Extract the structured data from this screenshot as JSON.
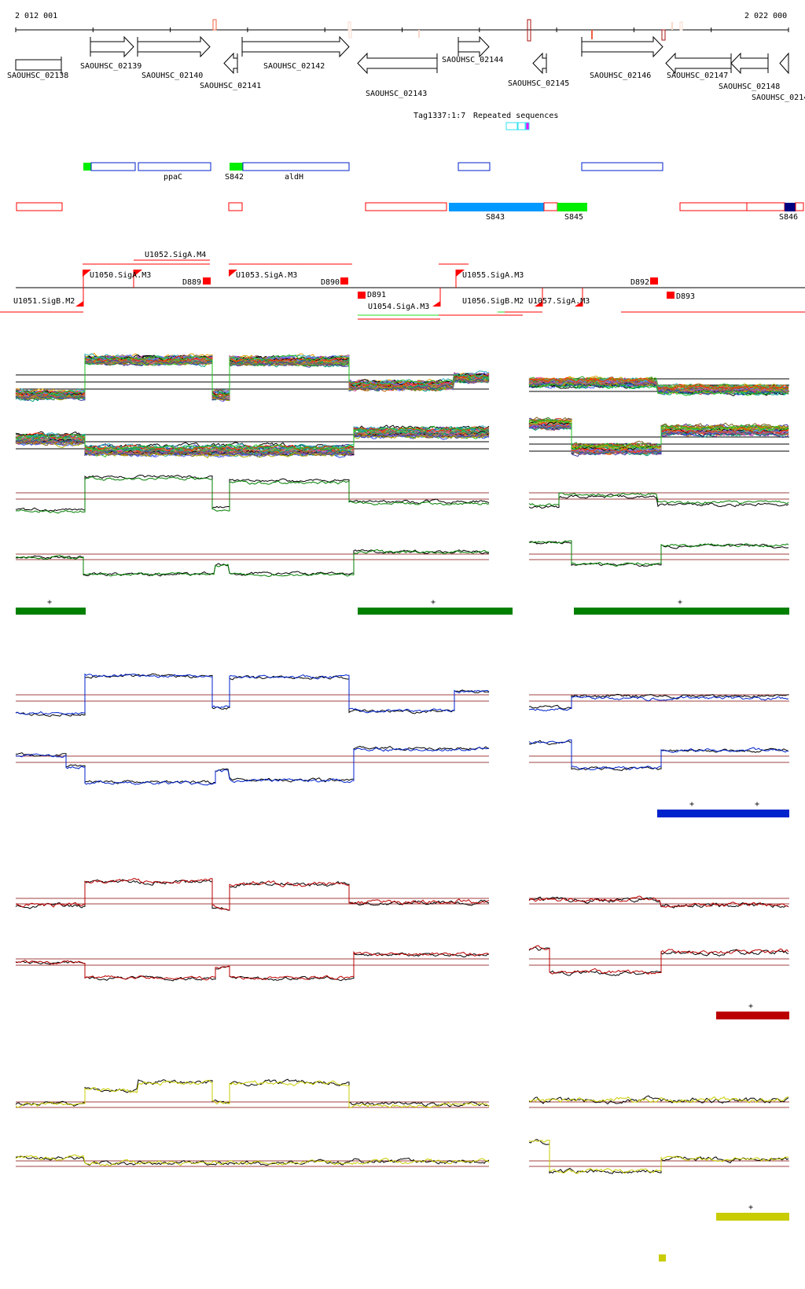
{
  "scale": {
    "start_label": "2 012 001",
    "end_label": "2 022 000"
  },
  "genes": [
    "SAOUHSC_02138",
    "SAOUHSC_02139",
    "SAOUHSC_02140",
    "SAOUHSC_02141",
    "SAOUHSC_02142",
    "SAOUHSC_02143",
    "SAOUHSC_02144",
    "SAOUHSC_02145",
    "SAOUHSC_02146",
    "SAOUHSC_02147",
    "SAOUHSC_02148",
    "SAOUHSC_0214"
  ],
  "repeat_labels": [
    "Tag1337:1:7",
    "Repeated sequences"
  ],
  "features_row1": {
    "ppaC": "ppaC",
    "S842": "S842",
    "aldH": "aldH"
  },
  "features_row2": {
    "S843": "S843",
    "S845": "S845",
    "S846": "S846"
  },
  "promoters": [
    "U1050.SigA.M3",
    "U1052.SigA.M4",
    "U1051.SigB.M2",
    "U1053.SigA.M3",
    "U1054.SigA.M3",
    "U1055.SigA.M3",
    "U1056.SigB.M2",
    "U1057.SigA.M3"
  ],
  "terminators": [
    "D889",
    "D890",
    "D891",
    "D892",
    "D893"
  ],
  "plus_marks": [
    "+",
    "+",
    "+",
    "+",
    "+",
    "+",
    "+",
    "+"
  ],
  "colors": {
    "green": "#008000",
    "blue": "#0022cc",
    "red": "#bb0000",
    "yellow": "#c8cc00",
    "gene_red": "#ff0000"
  }
}
